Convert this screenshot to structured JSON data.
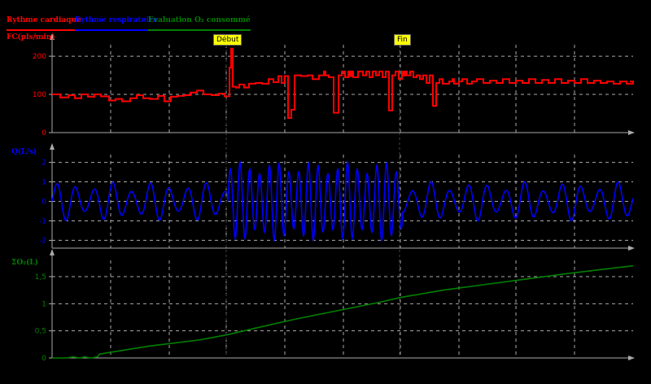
{
  "legend": {
    "heart": {
      "label": "Rythme cardiaque",
      "color": "#ff0000"
    },
    "resp": {
      "label": "Rythme respiratoire",
      "color": "#0000ff"
    },
    "o2": {
      "label": "Evaluation O₂ consommé",
      "color": "#008000"
    }
  },
  "markers": {
    "start": "Début",
    "end": "Fin"
  },
  "chart_data": [
    {
      "type": "line",
      "ylabel": "FC(pls/min)",
      "color": "#ff0000",
      "ylim": [
        0,
        230
      ],
      "yticks": [
        0,
        100,
        200
      ],
      "ytick_labels": [
        "0",
        "100",
        "200"
      ],
      "grid": true,
      "series": [
        {
          "x": [
            0,
            10,
            20,
            28,
            36,
            44,
            52,
            60,
            70,
            78,
            86,
            96,
            104,
            112,
            120,
            130,
            138,
            146,
            154,
            162,
            170,
            178,
            186,
            196,
            205,
            212,
            218,
            220,
            222,
            226,
            230,
            236,
            242,
            250,
            258,
            266,
            272,
            278,
            282,
            286,
            290,
            294,
            298,
            306,
            314,
            320,
            328,
            334,
            336,
            340,
            346,
            352,
            356,
            360,
            364,
            366,
            368,
            370,
            376,
            382,
            386,
            390,
            394,
            398,
            402,
            406,
            410,
            414,
            418,
            422,
            426,
            430,
            432,
            434,
            436,
            440,
            444,
            448,
            452,
            456,
            460,
            464,
            468,
            472,
            476,
            480,
            488,
            492,
            494,
            500,
            504,
            510,
            516,
            522,
            530,
            538,
            546,
            554,
            562,
            570,
            578,
            586,
            594,
            602,
            610,
            618,
            626,
            634,
            642,
            650,
            658,
            666,
            674,
            682,
            690,
            698,
            706,
            714
          ],
          "values": [
            100,
            92,
            98,
            90,
            100,
            94,
            100,
            95,
            84,
            88,
            82,
            90,
            98,
            90,
            88,
            96,
            82,
            94,
            96,
            98,
            105,
            110,
            100,
            98,
            102,
            95,
            170,
            220,
            120,
            118,
            126,
            118,
            128,
            130,
            128,
            140,
            132,
            148,
            130,
            148,
            38,
            60,
            150,
            148,
            150,
            140,
            150,
            160,
            150,
            145,
            52,
            150,
            160,
            145,
            160,
            148,
            160,
            145,
            160,
            150,
            160,
            145,
            160,
            150,
            160,
            145,
            160,
            58,
            150,
            160,
            140,
            160,
            150,
            160,
            150,
            160,
            145,
            150,
            140,
            150,
            130,
            150,
            70,
            130,
            140,
            128,
            134,
            140,
            128,
            134,
            140,
            128,
            134,
            140,
            130,
            136,
            130,
            140,
            130,
            136,
            130,
            140,
            130,
            138,
            130,
            140,
            130,
            136,
            130,
            140,
            130,
            136,
            130,
            134,
            128,
            134,
            128,
            134
          ]
        }
      ]
    },
    {
      "type": "line",
      "ylabel": "Q(L/s)",
      "color": "#0000ff",
      "ylim": [
        -2.4,
        2.4
      ],
      "yticks": [
        -2,
        -1,
        0,
        1,
        2
      ],
      "ytick_labels": [
        "-2",
        "-1",
        "0",
        "1",
        "2"
      ],
      "grid": true,
      "series": [
        {
          "x_range": [
            0,
            714
          ],
          "rest_period": 23,
          "rest_amplitude": 1.0,
          "active_range": [
            216,
            430
          ],
          "active_period": 12,
          "active_amplitude": 2.0
        }
      ]
    },
    {
      "type": "line",
      "ylabel": "ΣO₂(L)",
      "color": "#008000",
      "ylim": [
        0,
        1.8
      ],
      "yticks": [
        0,
        0.5,
        1,
        1.5
      ],
      "ytick_labels": [
        "0",
        "0,5",
        "1",
        "1,5"
      ],
      "grid": true,
      "series": [
        {
          "x": [
            0,
            18,
            26,
            34,
            40,
            48,
            56,
            58,
            70,
            120,
            180,
            216,
            250,
            300,
            350,
            400,
            430,
            480,
            530,
            580,
            630,
            680,
            714
          ],
          "values": [
            0,
            0,
            0.02,
            0.0,
            0.02,
            0.0,
            0.02,
            0.07,
            0.1,
            0.22,
            0.33,
            0.43,
            0.55,
            0.72,
            0.87,
            1.02,
            1.12,
            1.25,
            1.35,
            1.45,
            1.55,
            1.64,
            1.7
          ]
        }
      ]
    }
  ]
}
